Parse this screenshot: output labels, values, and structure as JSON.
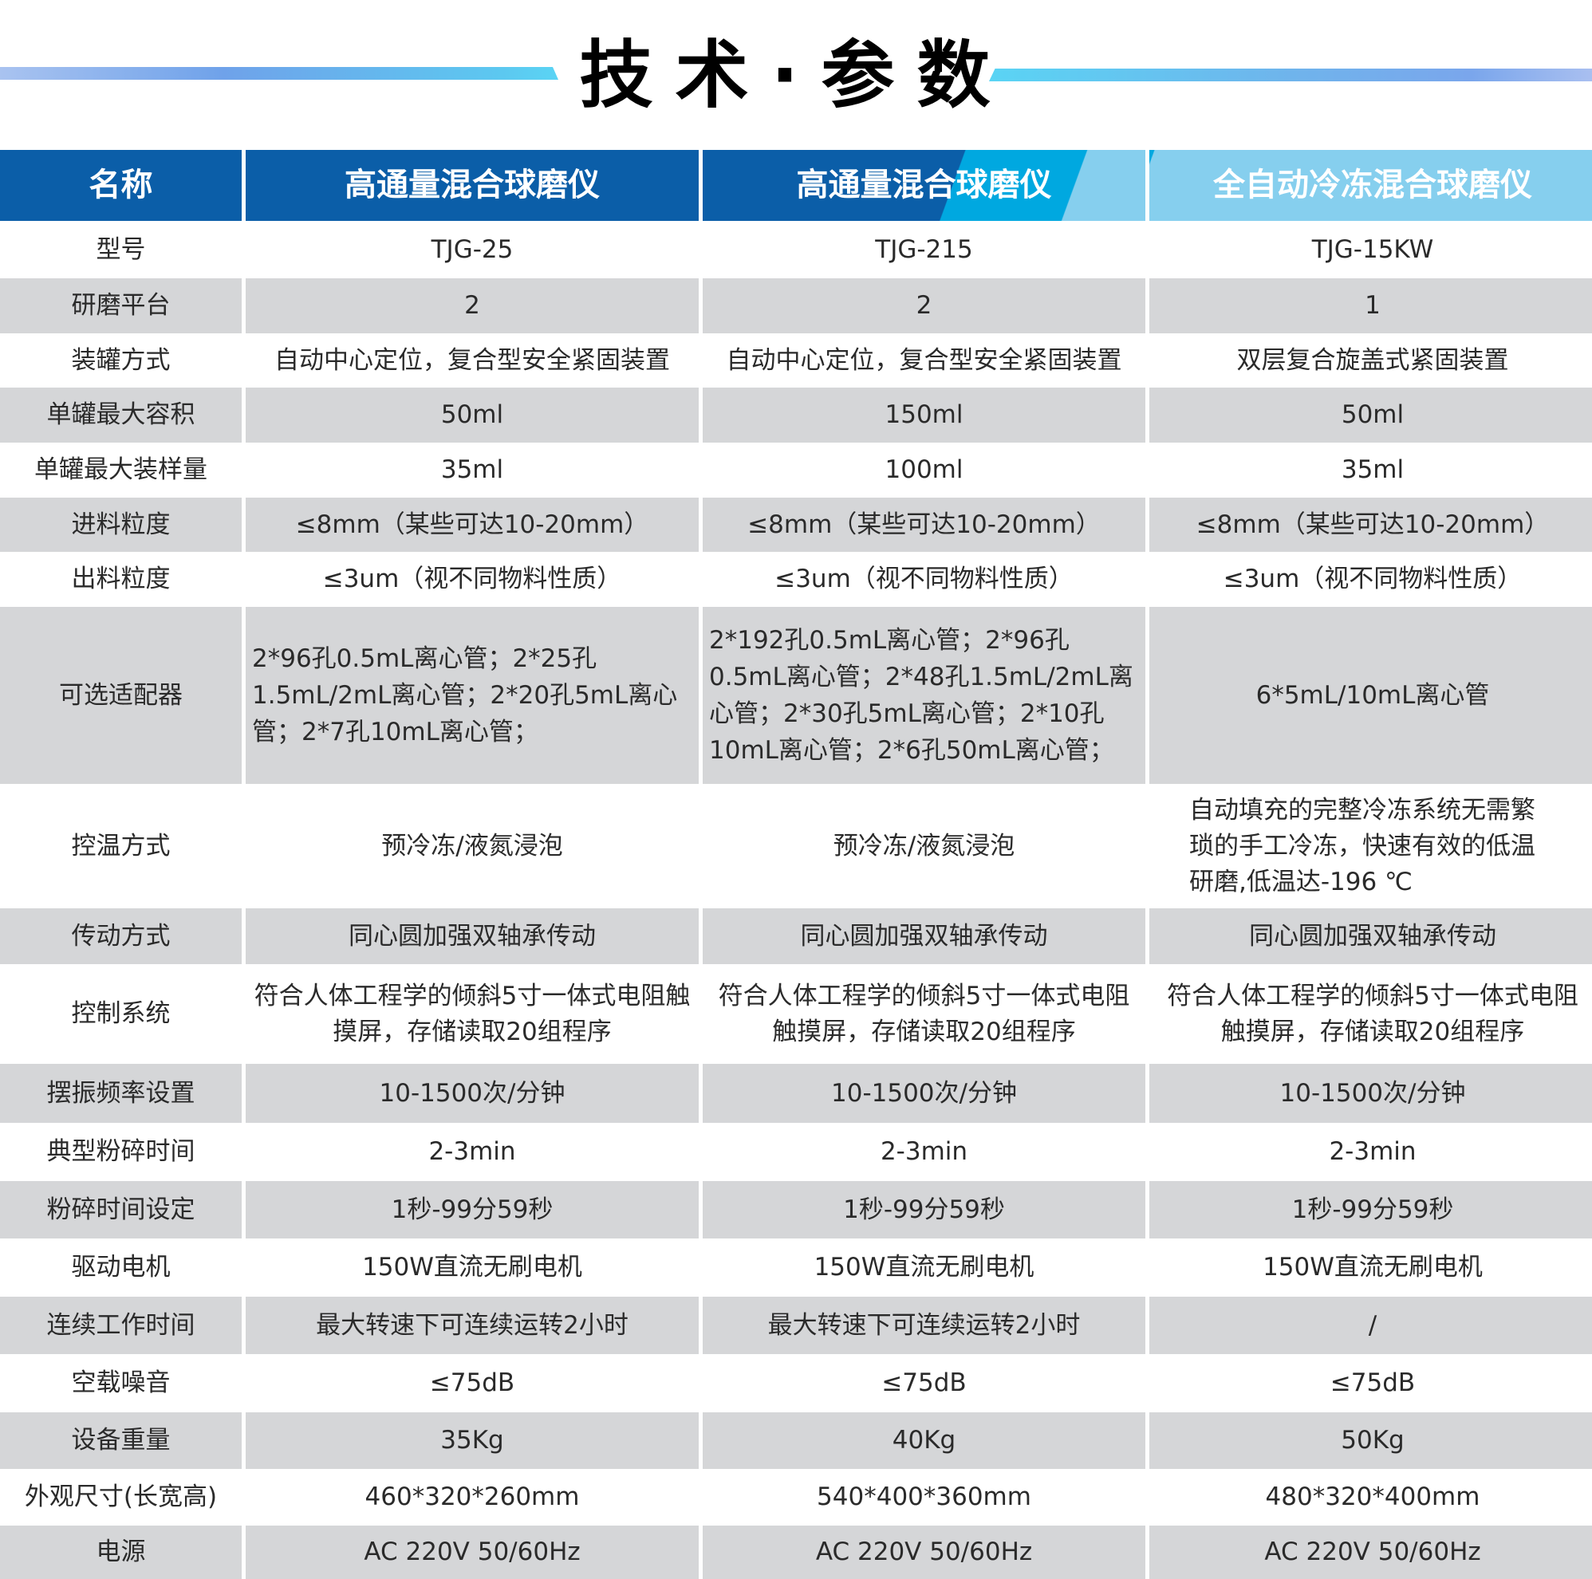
{
  "title": "技术·参数",
  "colors": {
    "header_dark": "#0b5ea8",
    "header_mid": "#00a8e0",
    "header_light": "#86cfee",
    "row_gray": "#d5d6d8"
  },
  "table": {
    "headers": [
      "名称",
      "高通量混合球磨仪",
      "高通量混合球磨仪",
      "全自动冷冻混合球磨仪"
    ],
    "rows": [
      [
        "型号",
        "TJG-25",
        "TJG-215",
        "TJG-15KW"
      ],
      [
        "研磨平台",
        "2",
        "2",
        "1"
      ],
      [
        "装罐方式",
        "自动中心定位，复合型安全紧固装置",
        "自动中心定位，复合型安全紧固装置",
        "双层复合旋盖式紧固装置"
      ],
      [
        "单罐最大容积",
        "50ml",
        "150ml",
        "50ml"
      ],
      [
        "单罐最大装样量",
        "35ml",
        "100ml",
        "35ml"
      ],
      [
        "进料粒度",
        "≤8mm（某些可达10-20mm）",
        "≤8mm（某些可达10-20mm）",
        "≤8mm（某些可达10-20mm）"
      ],
      [
        "出料粒度",
        "≤3um（视不同物料性质）",
        "≤3um（视不同物料性质）",
        "≤3um（视不同物料性质）"
      ],
      [
        "可选适配器",
        "2*96孔0.5mL离心管；2*25孔1.5mL/2mL离心管；2*20孔5mL离心管；2*7孔10mL离心管；",
        "2*192孔0.5mL离心管；2*96孔0.5mL离心管；2*48孔1.5mL/2mL离心管；2*30孔5mL离心管；2*10孔10mL离心管；2*6孔50mL离心管；",
        "6*5mL/10mL离心管"
      ],
      [
        "控温方式",
        "预冷冻/液氮浸泡",
        "预冷冻/液氮浸泡",
        "自动填充的完整冷冻系统无需繁琐的手工冷冻，快速有效的低温研磨,低温达-196 ℃"
      ],
      [
        "传动方式",
        "同心圆加强双轴承传动",
        "同心圆加强双轴承传动",
        "同心圆加强双轴承传动"
      ],
      [
        "控制系统",
        "符合人体工程学的倾斜5寸一体式电阻触摸屏，存储读取20组程序",
        "符合人体工程学的倾斜5寸一体式电阻触摸屏，存储读取20组程序",
        "符合人体工程学的倾斜5寸一体式电阻触摸屏，存储读取20组程序"
      ],
      [
        "摆振频率设置",
        "10-1500次/分钟",
        "10-1500次/分钟",
        "10-1500次/分钟"
      ],
      [
        "典型粉碎时间",
        "2-3min",
        "2-3min",
        "2-3min"
      ],
      [
        "粉碎时间设定",
        "1秒-99分59秒",
        "1秒-99分59秒",
        "1秒-99分59秒"
      ],
      [
        "驱动电机",
        "150W直流无刷电机",
        "150W直流无刷电机",
        "150W直流无刷电机"
      ],
      [
        "连续工作时间",
        "最大转速下可连续运转2小时",
        "最大转速下可连续运转2小时",
        "/"
      ],
      [
        "空载噪音",
        "≤75dB",
        "≤75dB",
        "≤75dB"
      ],
      [
        "设备重量",
        "35Kg",
        "40Kg",
        "50Kg"
      ],
      [
        "外观尺寸(长宽高)",
        "460*320*260mm",
        "540*400*360mm",
        "480*320*400mm"
      ],
      [
        "电源",
        "AC 220V 50/60Hz",
        "AC 220V 50/60Hz",
        "AC 220V 50/60Hz"
      ]
    ]
  }
}
